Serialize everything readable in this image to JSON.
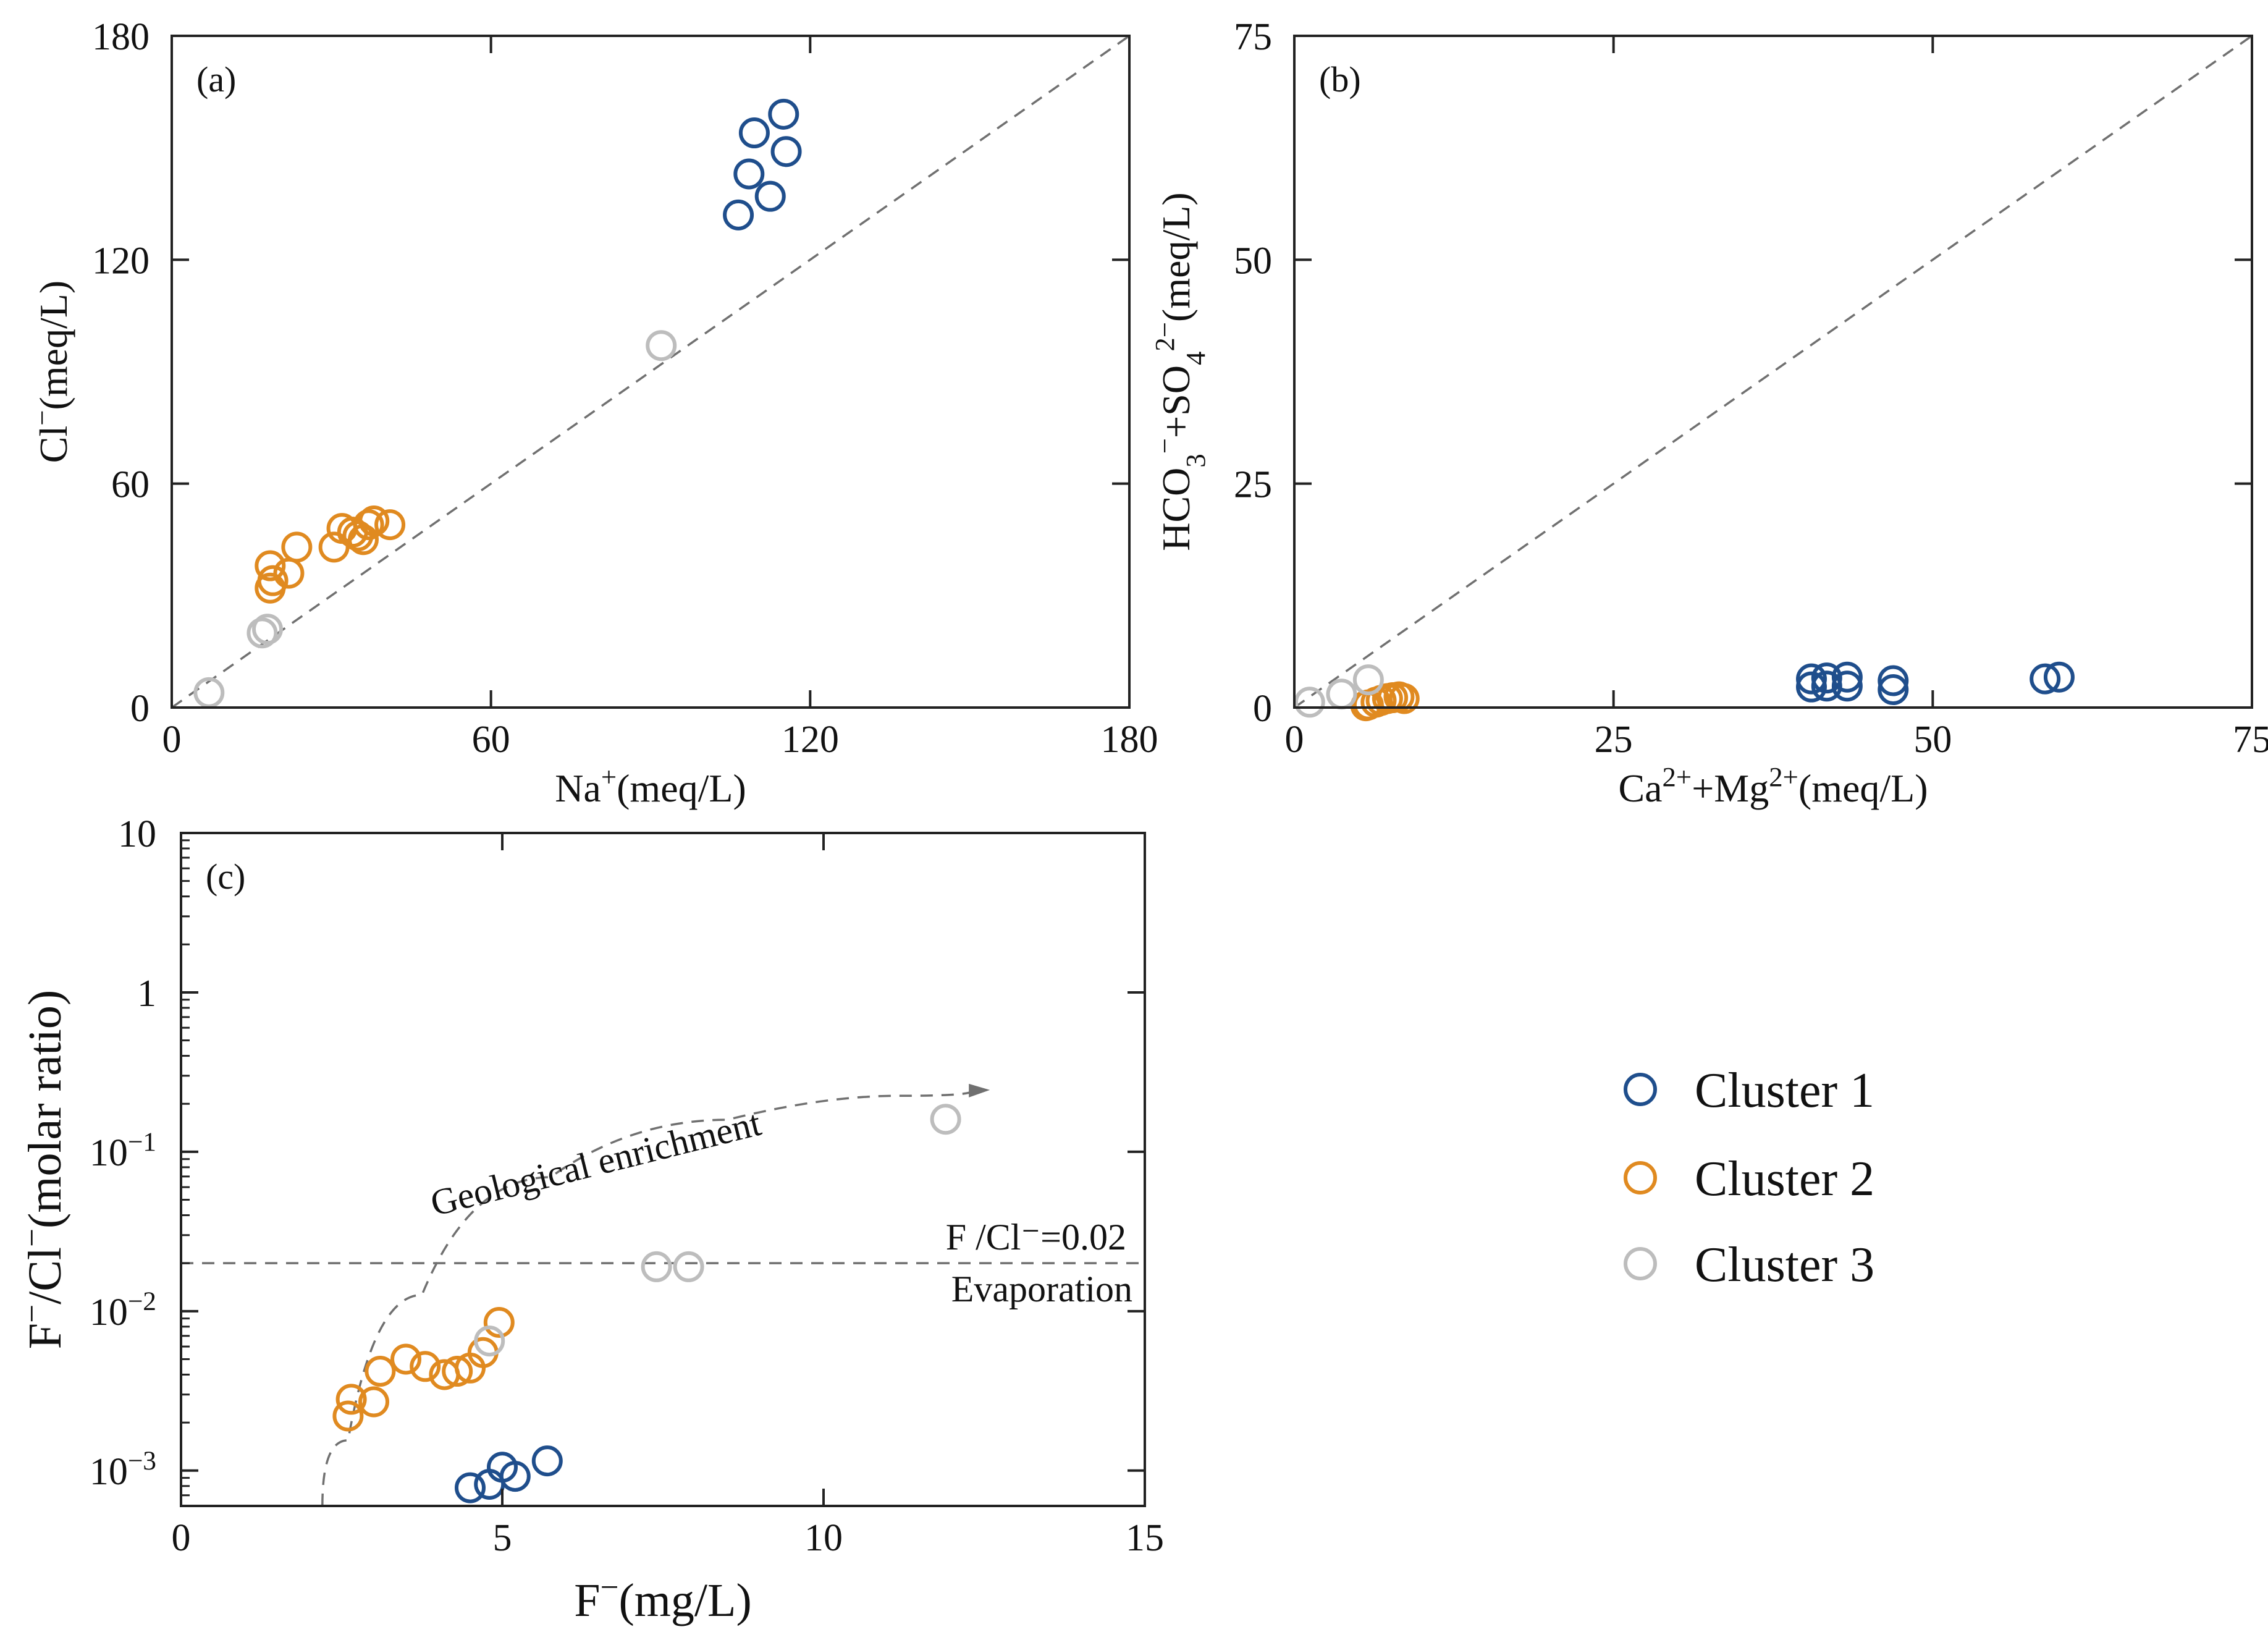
{
  "colors": {
    "cluster1": "#1f4e8c",
    "cluster2": "#e08a20",
    "cluster3": "#bdbdbd",
    "reference": "#707070"
  },
  "legend": {
    "placement": "right-middle",
    "entries": [
      {
        "label": "Cluster 1",
        "color": "#1f4e8c"
      },
      {
        "label": "Cluster 2",
        "color": "#e08a20"
      },
      {
        "label": "Cluster 3",
        "color": "#bdbdbd"
      }
    ]
  },
  "chart_data": [
    {
      "panel": "(a)",
      "type": "scatter",
      "xlabel": "Na⁺(meq/L)",
      "ylabel": "Cl⁻(meq/L)",
      "xlim": [
        0,
        180
      ],
      "ylim": [
        0,
        180
      ],
      "xticks": [
        0,
        60,
        120,
        180
      ],
      "yticks": [
        0,
        60,
        120,
        180
      ],
      "reference_line": {
        "style": "dashed",
        "description": "1:1 line",
        "points": [
          [
            0,
            0
          ],
          [
            180,
            180
          ]
        ]
      },
      "series": [
        {
          "name": "Cluster 1",
          "color": "#1f4e8c",
          "points": [
            [
              106.5,
              132
            ],
            [
              108.5,
              143
            ],
            [
              109.5,
              154
            ],
            [
              112.5,
              137
            ],
            [
              115,
              159
            ],
            [
              115.5,
              149
            ]
          ]
        },
        {
          "name": "Cluster 2",
          "color": "#e08a20",
          "points": [
            [
              18.5,
              32
            ],
            [
              19,
              34
            ],
            [
              18.5,
              38
            ],
            [
              22,
              36
            ],
            [
              23.5,
              43
            ],
            [
              30.5,
              43
            ],
            [
              32,
              48
            ],
            [
              34,
              47
            ],
            [
              35,
              46
            ],
            [
              36,
              45
            ],
            [
              37,
              49
            ],
            [
              38,
              50
            ],
            [
              41,
              49
            ]
          ]
        },
        {
          "name": "Cluster 3",
          "color": "#bdbdbd",
          "points": [
            [
              7,
              4
            ],
            [
              17,
              20
            ],
            [
              18,
              21
            ],
            [
              92,
              97
            ]
          ]
        }
      ]
    },
    {
      "panel": "(b)",
      "type": "scatter",
      "xlabel": "Ca²⁺+Mg²⁺(meq/L)",
      "ylabel": "HCO₃⁻+SO₄²⁻(meq/L)",
      "xlim": [
        0,
        75
      ],
      "ylim": [
        0,
        75
      ],
      "xticks": [
        0,
        25,
        50,
        75
      ],
      "yticks": [
        0,
        25,
        50,
        75
      ],
      "reference_line": {
        "style": "dashed",
        "description": "1:1 line",
        "points": [
          [
            0,
            0
          ],
          [
            75,
            75
          ]
        ]
      },
      "series": [
        {
          "name": "Cluster 1",
          "color": "#1f4e8c",
          "points": [
            [
              40.5,
              2.3
            ],
            [
              40.5,
              3.2
            ],
            [
              41.7,
              2.4
            ],
            [
              41.7,
              3.3
            ],
            [
              43.3,
              2.4
            ],
            [
              43.3,
              3.4
            ],
            [
              46.9,
              2
            ],
            [
              46.9,
              3
            ],
            [
              58.8,
              3.2
            ],
            [
              59.9,
              3.4
            ]
          ]
        },
        {
          "name": "Cluster 2",
          "color": "#e08a20",
          "points": [
            [
              5.6,
              0.2
            ],
            [
              5.8,
              0.3
            ],
            [
              6.4,
              0.6
            ],
            [
              6.8,
              0.8
            ],
            [
              7.3,
              1
            ],
            [
              7.7,
              1.1
            ],
            [
              8.2,
              1.2
            ],
            [
              8.6,
              1
            ]
          ]
        },
        {
          "name": "Cluster 3",
          "color": "#bdbdbd",
          "points": [
            [
              1.2,
              0.6
            ],
            [
              3.7,
              1.5
            ],
            [
              5.8,
              3.1
            ]
          ]
        }
      ]
    },
    {
      "panel": "(c)",
      "type": "scatter",
      "xlabel": "F⁻(mg/L)",
      "ylabel": "F⁻/Cl⁻(molar ratio)",
      "xlim": [
        0,
        15
      ],
      "ylim": [
        0.0006,
        10
      ],
      "yscale": "log",
      "xticks": [
        0,
        5,
        10,
        15
      ],
      "yticks": [
        {
          "value": 10,
          "label": "10"
        },
        {
          "value": 1,
          "label": "1"
        },
        {
          "value": 0.1,
          "label": "10",
          "exp": "-1"
        },
        {
          "value": 0.01,
          "label": "10",
          "exp": "-2"
        },
        {
          "value": 0.001,
          "label": "10",
          "exp": "-3"
        }
      ],
      "annotations": {
        "ratio_line": {
          "value": 0.02,
          "label": "F /Cl⁻=0.02",
          "below_label": "Evaporation"
        },
        "trend": {
          "label": "Geological enrichment",
          "points": [
            [
              2.2,
              0.0006
            ],
            [
              3,
              0.004
            ],
            [
              4.5,
              0.04
            ],
            [
              7,
              0.12
            ],
            [
              10,
              0.21
            ],
            [
              12.3,
              0.24
            ]
          ]
        }
      },
      "series": [
        {
          "name": "Cluster 1",
          "color": "#1f4e8c",
          "points": [
            [
              4.5,
              0.00078
            ],
            [
              4.8,
              0.00082
            ],
            [
              5,
              0.00105
            ],
            [
              5.2,
              0.00092
            ],
            [
              5.7,
              0.00115
            ]
          ]
        },
        {
          "name": "Cluster 2",
          "color": "#e08a20",
          "points": [
            [
              2.6,
              0.0022
            ],
            [
              2.65,
              0.0028
            ],
            [
              3,
              0.0027
            ],
            [
              3.1,
              0.0042
            ],
            [
              3.5,
              0.005
            ],
            [
              3.8,
              0.0045
            ],
            [
              4.1,
              0.004
            ],
            [
              4.3,
              0.0042
            ],
            [
              4.5,
              0.0044
            ],
            [
              4.7,
              0.0055
            ],
            [
              4.95,
              0.0085
            ]
          ]
        },
        {
          "name": "Cluster 3",
          "color": "#bdbdbd",
          "points": [
            [
              4.8,
              0.0065
            ],
            [
              7.4,
              0.019
            ],
            [
              7.9,
              0.019
            ],
            [
              11.9,
              0.16
            ]
          ]
        }
      ]
    }
  ]
}
